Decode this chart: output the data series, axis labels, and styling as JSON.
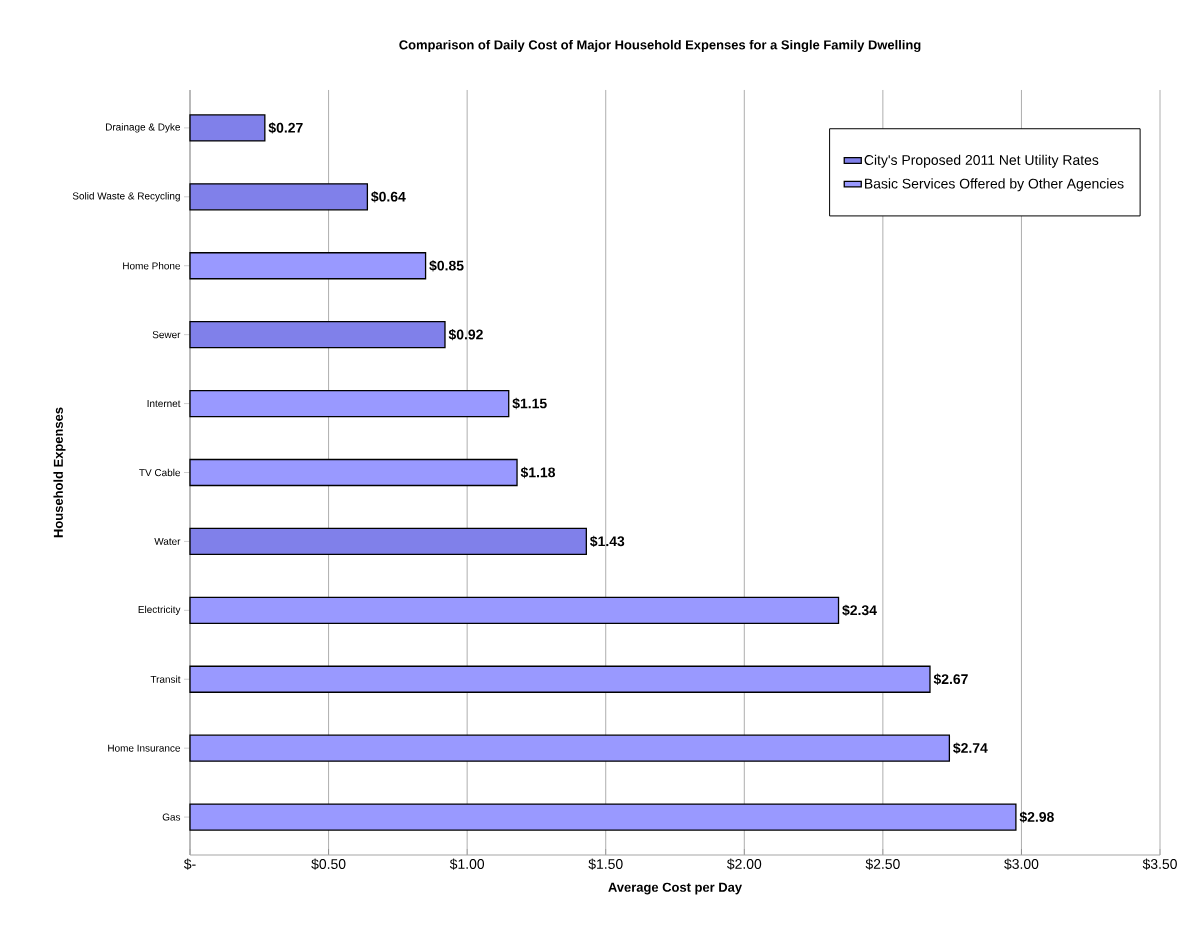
{
  "chart_data": {
    "type": "bar",
    "orientation": "horizontal",
    "title": "Comparison of Daily Cost of Major Household Expenses for a Single Family Dwelling",
    "xlabel": "Average Cost per Day",
    "ylabel": "Household Expenses",
    "categories": [
      "Drainage & Dyke",
      "Solid Waste & Recycling",
      "Home Phone",
      "Sewer",
      "Internet",
      "TV Cable",
      "Water",
      "Electricity",
      "Transit",
      "Home Insurance",
      "Gas"
    ],
    "series": [
      {
        "name": "City's Proposed 2011 Net Utility Rates",
        "color": "#8080ea",
        "values": [
          0.27,
          0.64,
          null,
          0.92,
          null,
          null,
          1.43,
          null,
          null,
          null,
          null
        ],
        "value_labels": [
          "$0.27",
          "$0.64",
          null,
          "$0.92",
          null,
          null,
          "$1.43",
          null,
          null,
          null,
          null
        ]
      },
      {
        "name": "Basic Services Offered by Other Agencies",
        "color": "#9999ff",
        "values": [
          null,
          null,
          0.85,
          null,
          1.15,
          1.18,
          null,
          2.34,
          2.67,
          2.74,
          2.98
        ],
        "value_labels": [
          null,
          null,
          "$0.85",
          null,
          "$1.15",
          "$1.18",
          null,
          "$2.34",
          "$2.67",
          "$2.74",
          "$2.98"
        ]
      }
    ],
    "xlim": [
      0,
      3.5
    ],
    "xticks": [
      {
        "value": 0,
        "label": "$-"
      },
      {
        "value": 0.5,
        "label": "$0.50"
      },
      {
        "value": 1,
        "label": "$1.00"
      },
      {
        "value": 1.5,
        "label": "$1.50"
      },
      {
        "value": 2,
        "label": "$2.00"
      },
      {
        "value": 2.5,
        "label": "$2.50"
      },
      {
        "value": 3,
        "label": "$3.00"
      },
      {
        "value": 3.5,
        "label": "$3.50"
      }
    ],
    "grid": "x",
    "legend": "top right"
  }
}
